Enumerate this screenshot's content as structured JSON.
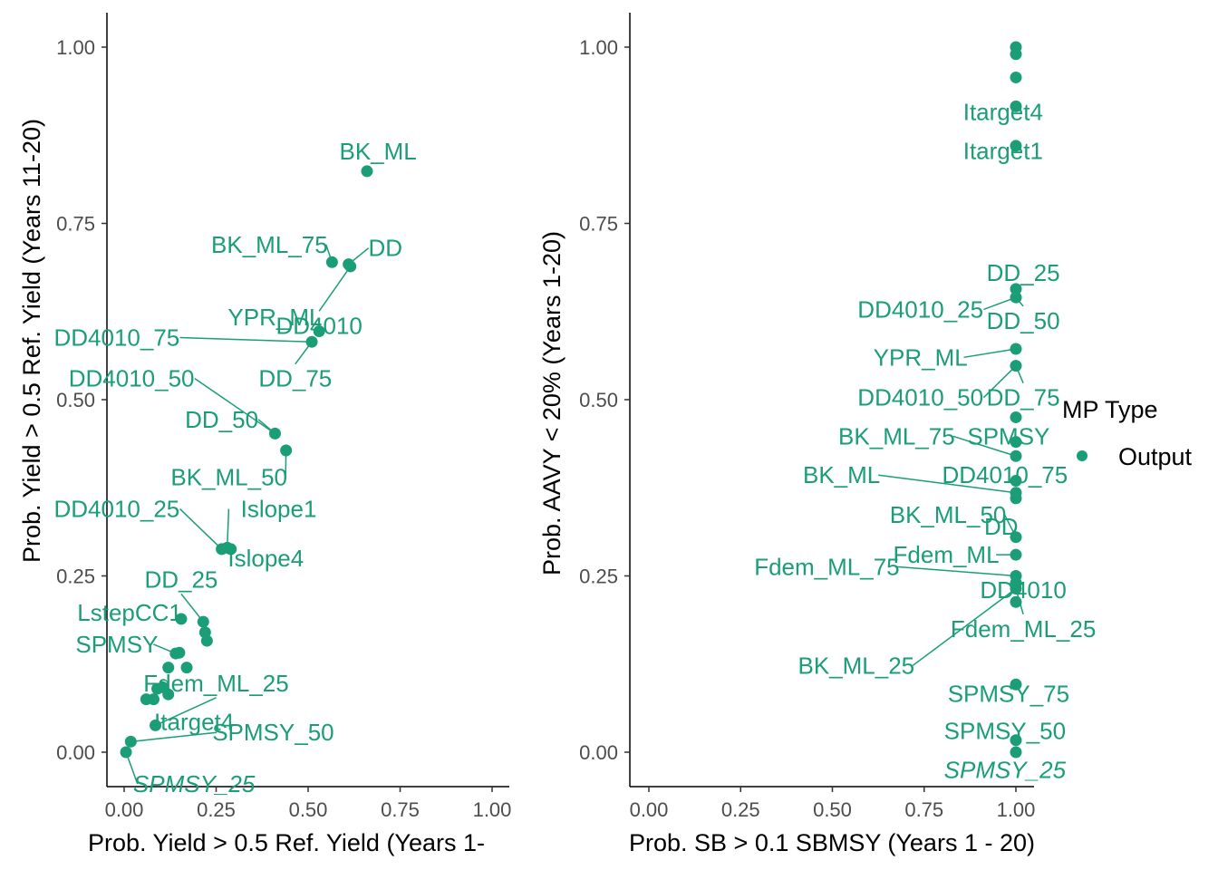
{
  "colors": {
    "point": "#1B9E77",
    "axis": "#000000",
    "tick_text": "#4d4d4d"
  },
  "legend": {
    "title": "MP Type",
    "items": [
      {
        "label": "Output",
        "color": "#1B9E77",
        "icon": "filled-circle"
      }
    ]
  },
  "chart_data": [
    {
      "type": "scatter",
      "xlabel": "Prob. Yield > 0.5 Ref. Yield (Years 1-",
      "ylabel": "Prob. Yield > 0.5 Ref. Yield (Years 11-20)",
      "xlim": [
        0,
        1
      ],
      "ylim": [
        0,
        1
      ],
      "xticks": [
        "0.00",
        "0.25",
        "0.50",
        "0.75",
        "1.00"
      ],
      "yticks": [
        "0.00",
        "0.25",
        "0.50",
        "0.75",
        "1.00"
      ],
      "grid": false,
      "points": [
        {
          "x": 0.66,
          "y": 0.824
        },
        {
          "x": 0.565,
          "y": 0.695
        },
        {
          "x": 0.61,
          "y": 0.692
        },
        {
          "x": 0.615,
          "y": 0.689
        },
        {
          "x": 0.53,
          "y": 0.597
        },
        {
          "x": 0.51,
          "y": 0.582
        },
        {
          "x": 0.41,
          "y": 0.452
        },
        {
          "x": 0.44,
          "y": 0.428
        },
        {
          "x": 0.265,
          "y": 0.288
        },
        {
          "x": 0.28,
          "y": 0.29
        },
        {
          "x": 0.29,
          "y": 0.288
        },
        {
          "x": 0.155,
          "y": 0.189
        },
        {
          "x": 0.215,
          "y": 0.185
        },
        {
          "x": 0.22,
          "y": 0.17
        },
        {
          "x": 0.225,
          "y": 0.158
        },
        {
          "x": 0.14,
          "y": 0.14
        },
        {
          "x": 0.15,
          "y": 0.141
        },
        {
          "x": 0.17,
          "y": 0.12
        },
        {
          "x": 0.12,
          "y": 0.12
        },
        {
          "x": 0.09,
          "y": 0.09
        },
        {
          "x": 0.105,
          "y": 0.092
        },
        {
          "x": 0.12,
          "y": 0.082
        },
        {
          "x": 0.08,
          "y": 0.075
        },
        {
          "x": 0.06,
          "y": 0.075
        },
        {
          "x": 0.085,
          "y": 0.038
        },
        {
          "x": 0.018,
          "y": 0.015
        },
        {
          "x": 0.005,
          "y": 0.0
        }
      ],
      "labels": [
        {
          "text": "BK_ML",
          "x": 0.66,
          "y": 0.824,
          "lx": 0.69,
          "ly": 0.852,
          "italic": false
        },
        {
          "text": "BK_ML_75",
          "x": 0.565,
          "y": 0.695,
          "lx": 0.395,
          "ly": 0.72,
          "italic": false
        },
        {
          "text": "DD",
          "x": 0.61,
          "y": 0.692,
          "lx": 0.71,
          "ly": 0.715,
          "italic": false
        },
        {
          "text": "DD4010",
          "x": 0.615,
          "y": 0.689,
          "lx": 0.53,
          "ly": 0.605,
          "italic": false
        },
        {
          "text": "YPR_ML",
          "x": 0.53,
          "y": 0.597,
          "lx": 0.41,
          "ly": 0.617,
          "italic": false
        },
        {
          "text": "DD4010_75",
          "x": 0.51,
          "y": 0.582,
          "lx": -0.02,
          "ly": 0.588,
          "italic": false
        },
        {
          "text": "DD_75",
          "x": 0.51,
          "y": 0.582,
          "lx": 0.465,
          "ly": 0.53,
          "italic": false
        },
        {
          "text": "DD4010_50",
          "x": 0.41,
          "y": 0.452,
          "lx": 0.02,
          "ly": 0.53,
          "italic": false
        },
        {
          "text": "DD_50",
          "x": 0.41,
          "y": 0.452,
          "lx": 0.265,
          "ly": 0.472,
          "italic": false
        },
        {
          "text": "BK_ML_50",
          "x": 0.44,
          "y": 0.428,
          "lx": 0.285,
          "ly": 0.39,
          "italic": false
        },
        {
          "text": "DD4010_25",
          "x": 0.265,
          "y": 0.288,
          "lx": -0.02,
          "ly": 0.345,
          "italic": false
        },
        {
          "text": "Islope1",
          "x": 0.28,
          "y": 0.29,
          "lx": 0.42,
          "ly": 0.345,
          "italic": false
        },
        {
          "text": "Islope4",
          "x": 0.29,
          "y": 0.288,
          "lx": 0.385,
          "ly": 0.275,
          "italic": false
        },
        {
          "text": "DD_25",
          "x": 0.215,
          "y": 0.185,
          "lx": 0.155,
          "ly": 0.245,
          "italic": false
        },
        {
          "text": "LstepCC1",
          "x": 0.155,
          "y": 0.189,
          "lx": 0.015,
          "ly": 0.198,
          "italic": false
        },
        {
          "text": "SPMSY",
          "x": 0.14,
          "y": 0.14,
          "lx": -0.02,
          "ly": 0.153,
          "italic": false
        },
        {
          "text": "Fdem_ML_25",
          "x": 0.085,
          "y": 0.038,
          "lx": 0.25,
          "ly": 0.098,
          "italic": false
        },
        {
          "text": "Itarget4",
          "x": 0.085,
          "y": 0.038,
          "lx": 0.19,
          "ly": 0.043,
          "italic": false
        },
        {
          "text": "SPMSY_50",
          "x": 0.018,
          "y": 0.015,
          "lx": 0.405,
          "ly": 0.028,
          "italic": false
        },
        {
          "text": "SPMSY_25",
          "x": 0.005,
          "y": 0.0,
          "lx": 0.19,
          "ly": -0.045,
          "italic": true
        }
      ]
    },
    {
      "type": "scatter",
      "xlabel": "Prob. SB > 0.1 SBMSY (Years 1 - 20)",
      "ylabel": "Prob. AAVY < 20% (Years 1-20)",
      "xlim": [
        0,
        1
      ],
      "ylim": [
        0,
        1
      ],
      "xticks": [
        "0.00",
        "0.25",
        "0.50",
        "0.75",
        "1.00"
      ],
      "yticks": [
        "0.00",
        "0.25",
        "0.50",
        "0.75",
        "1.00"
      ],
      "grid": false,
      "points": [
        {
          "x": 1.0,
          "y": 1.0
        },
        {
          "x": 1.0,
          "y": 0.99
        },
        {
          "x": 1.0,
          "y": 0.957
        },
        {
          "x": 1.0,
          "y": 0.916
        },
        {
          "x": 1.0,
          "y": 0.86
        },
        {
          "x": 1.0,
          "y": 0.657
        },
        {
          "x": 1.0,
          "y": 0.645
        },
        {
          "x": 1.0,
          "y": 0.572
        },
        {
          "x": 1.0,
          "y": 0.548
        },
        {
          "x": 1.0,
          "y": 0.475
        },
        {
          "x": 1.0,
          "y": 0.44
        },
        {
          "x": 1.0,
          "y": 0.42
        },
        {
          "x": 1.0,
          "y": 0.385
        },
        {
          "x": 1.0,
          "y": 0.368
        },
        {
          "x": 1.0,
          "y": 0.36
        },
        {
          "x": 1.0,
          "y": 0.305
        },
        {
          "x": 1.0,
          "y": 0.28
        },
        {
          "x": 1.0,
          "y": 0.25
        },
        {
          "x": 1.0,
          "y": 0.24
        },
        {
          "x": 1.0,
          "y": 0.232
        },
        {
          "x": 1.0,
          "y": 0.213
        },
        {
          "x": 1.0,
          "y": 0.096
        },
        {
          "x": 1.0,
          "y": 0.017
        },
        {
          "x": 1.0,
          "y": 0.0
        }
      ],
      "labels": [
        {
          "text": "Itarget4",
          "x": 1.0,
          "y": 0.916,
          "lx": 0.965,
          "ly": 0.908,
          "italic": false
        },
        {
          "text": "Itarget1",
          "x": 1.0,
          "y": 0.86,
          "lx": 0.965,
          "ly": 0.853,
          "italic": false
        },
        {
          "text": "DD_25",
          "x": 1.0,
          "y": 0.657,
          "lx": 1.02,
          "ly": 0.68,
          "italic": false
        },
        {
          "text": "DD4010_25",
          "x": 1.0,
          "y": 0.645,
          "lx": 0.74,
          "ly": 0.628,
          "italic": false
        },
        {
          "text": "DD_50",
          "x": 1.0,
          "y": 0.645,
          "lx": 1.02,
          "ly": 0.612,
          "italic": false
        },
        {
          "text": "YPR_ML",
          "x": 1.0,
          "y": 0.572,
          "lx": 0.74,
          "ly": 0.56,
          "italic": false
        },
        {
          "text": "DD4010_50",
          "x": 1.0,
          "y": 0.548,
          "lx": 0.74,
          "ly": 0.503,
          "italic": false
        },
        {
          "text": "DD_75",
          "x": 1.0,
          "y": 0.548,
          "lx": 1.02,
          "ly": 0.503,
          "italic": false
        },
        {
          "text": "BK_ML_75",
          "x": 1.0,
          "y": 0.42,
          "lx": 0.675,
          "ly": 0.448,
          "italic": false
        },
        {
          "text": "SPMSY",
          "x": 1.0,
          "y": 0.42,
          "lx": 0.98,
          "ly": 0.448,
          "italic": false
        },
        {
          "text": "BK_ML",
          "x": 1.0,
          "y": 0.368,
          "lx": 0.525,
          "ly": 0.393,
          "italic": false
        },
        {
          "text": "DD4010_75",
          "x": 1.0,
          "y": 0.368,
          "lx": 0.97,
          "ly": 0.393,
          "italic": false
        },
        {
          "text": "BK_ML_50",
          "x": 1.0,
          "y": 0.305,
          "lx": 0.815,
          "ly": 0.337,
          "italic": false
        },
        {
          "text": "DD",
          "x": 1.0,
          "y": 0.305,
          "lx": 0.96,
          "ly": 0.32,
          "italic": false
        },
        {
          "text": "Fdem_ML",
          "x": 1.0,
          "y": 0.28,
          "lx": 0.81,
          "ly": 0.28,
          "italic": false
        },
        {
          "text": "Fdem_ML_75",
          "x": 1.0,
          "y": 0.25,
          "lx": 0.485,
          "ly": 0.263,
          "italic": false
        },
        {
          "text": "DD4010",
          "x": 1.0,
          "y": 0.24,
          "lx": 1.02,
          "ly": 0.23,
          "italic": false
        },
        {
          "text": "Fdem_ML_25",
          "x": 1.0,
          "y": 0.232,
          "lx": 1.02,
          "ly": 0.175,
          "italic": false
        },
        {
          "text": "BK_ML_25",
          "x": 1.0,
          "y": 0.232,
          "lx": 0.565,
          "ly": 0.123,
          "italic": false
        },
        {
          "text": "SPMSY_75",
          "x": 1.0,
          "y": 0.096,
          "lx": 0.98,
          "ly": 0.083,
          "italic": false
        },
        {
          "text": "SPMSY_50",
          "x": 1.0,
          "y": 0.017,
          "lx": 0.97,
          "ly": 0.03,
          "italic": false
        },
        {
          "text": "SPMSY_25",
          "x": 1.0,
          "y": 0.0,
          "lx": 0.97,
          "ly": -0.025,
          "italic": true
        }
      ]
    }
  ]
}
